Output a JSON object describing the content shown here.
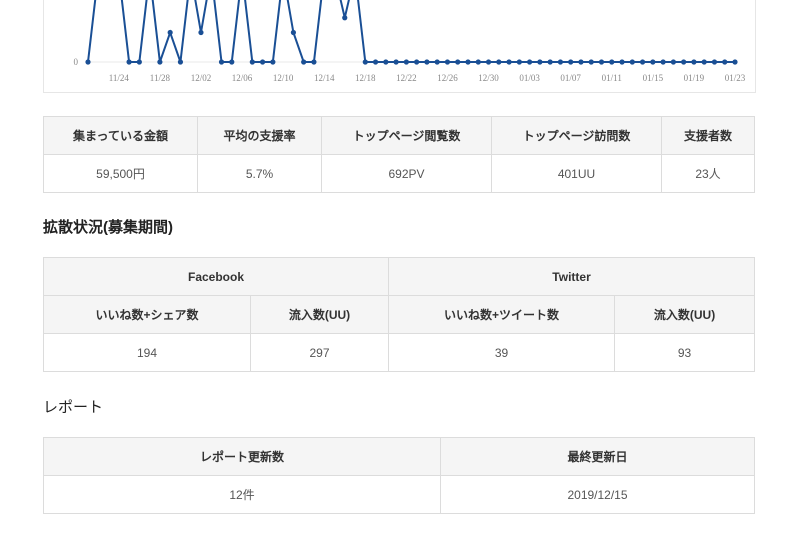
{
  "chart_data": {
    "type": "line",
    "y_tick_labels": [
      "0"
    ],
    "x_tick_labels": [
      "11/24",
      "11/28",
      "12/02",
      "12/06",
      "12/10",
      "12/14",
      "12/18",
      "12/22",
      "12/26",
      "12/30",
      "01/03",
      "01/07",
      "01/11",
      "01/15",
      "01/19",
      "01/23"
    ],
    "x": [
      "11/21",
      "11/22",
      "11/23",
      "11/24",
      "11/25",
      "11/26",
      "11/27",
      "11/28",
      "11/29",
      "11/30",
      "12/01",
      "12/02",
      "12/03",
      "12/04",
      "12/05",
      "12/06",
      "12/07",
      "12/08",
      "12/09",
      "12/10",
      "12/11",
      "12/12",
      "12/13",
      "12/14",
      "12/15",
      "12/16",
      "12/17",
      "12/18",
      "12/19",
      "12/20",
      "12/21",
      "12/22",
      "12/23",
      "12/24",
      "12/25",
      "12/26",
      "12/27",
      "12/28",
      "12/29",
      "12/30",
      "12/31",
      "01/01",
      "01/02",
      "01/03",
      "01/04",
      "01/05",
      "01/06",
      "01/07",
      "01/08",
      "01/09",
      "01/10",
      "01/11",
      "01/12",
      "01/13",
      "01/14",
      "01/15",
      "01/16",
      "01/17",
      "01/18",
      "01/19",
      "01/20",
      "01/21",
      "01/22",
      "01/23"
    ],
    "values": [
      0,
      3,
      3,
      3,
      0,
      0,
      3,
      0,
      1,
      0,
      3,
      1,
      3,
      0,
      0,
      3,
      0,
      0,
      0,
      3,
      1,
      0,
      0,
      3,
      3,
      1.5,
      3,
      0,
      0,
      0,
      0,
      0,
      0,
      0,
      0,
      0,
      0,
      0,
      0,
      0,
      0,
      0,
      0,
      0,
      0,
      0,
      0,
      0,
      0,
      0,
      0,
      0,
      0,
      0,
      0,
      0,
      0,
      0,
      0,
      0,
      0,
      0,
      0,
      0
    ],
    "line_color": "#1a4f95",
    "grid": false
  },
  "summary": {
    "headers": [
      "集まっている金額",
      "平均の支援率",
      "トップページ閲覧数",
      "トップページ訪問数",
      "支援者数"
    ],
    "values": [
      "59,500円",
      "5.7%",
      "692PV",
      "401UU",
      "23人"
    ]
  },
  "spread": {
    "title": "拡散状況(募集期間)",
    "facebook": "Facebook",
    "twitter": "Twitter",
    "subheaders": [
      "いいね数+シェア数",
      "流入数(UU)",
      "いいね数+ツイート数",
      "流入数(UU)"
    ],
    "values": [
      "194",
      "297",
      "39",
      "93"
    ]
  },
  "report": {
    "title": "レポート",
    "headers": [
      "レポート更新数",
      "最終更新日"
    ],
    "values": [
      "12件",
      "2019/12/15"
    ]
  }
}
